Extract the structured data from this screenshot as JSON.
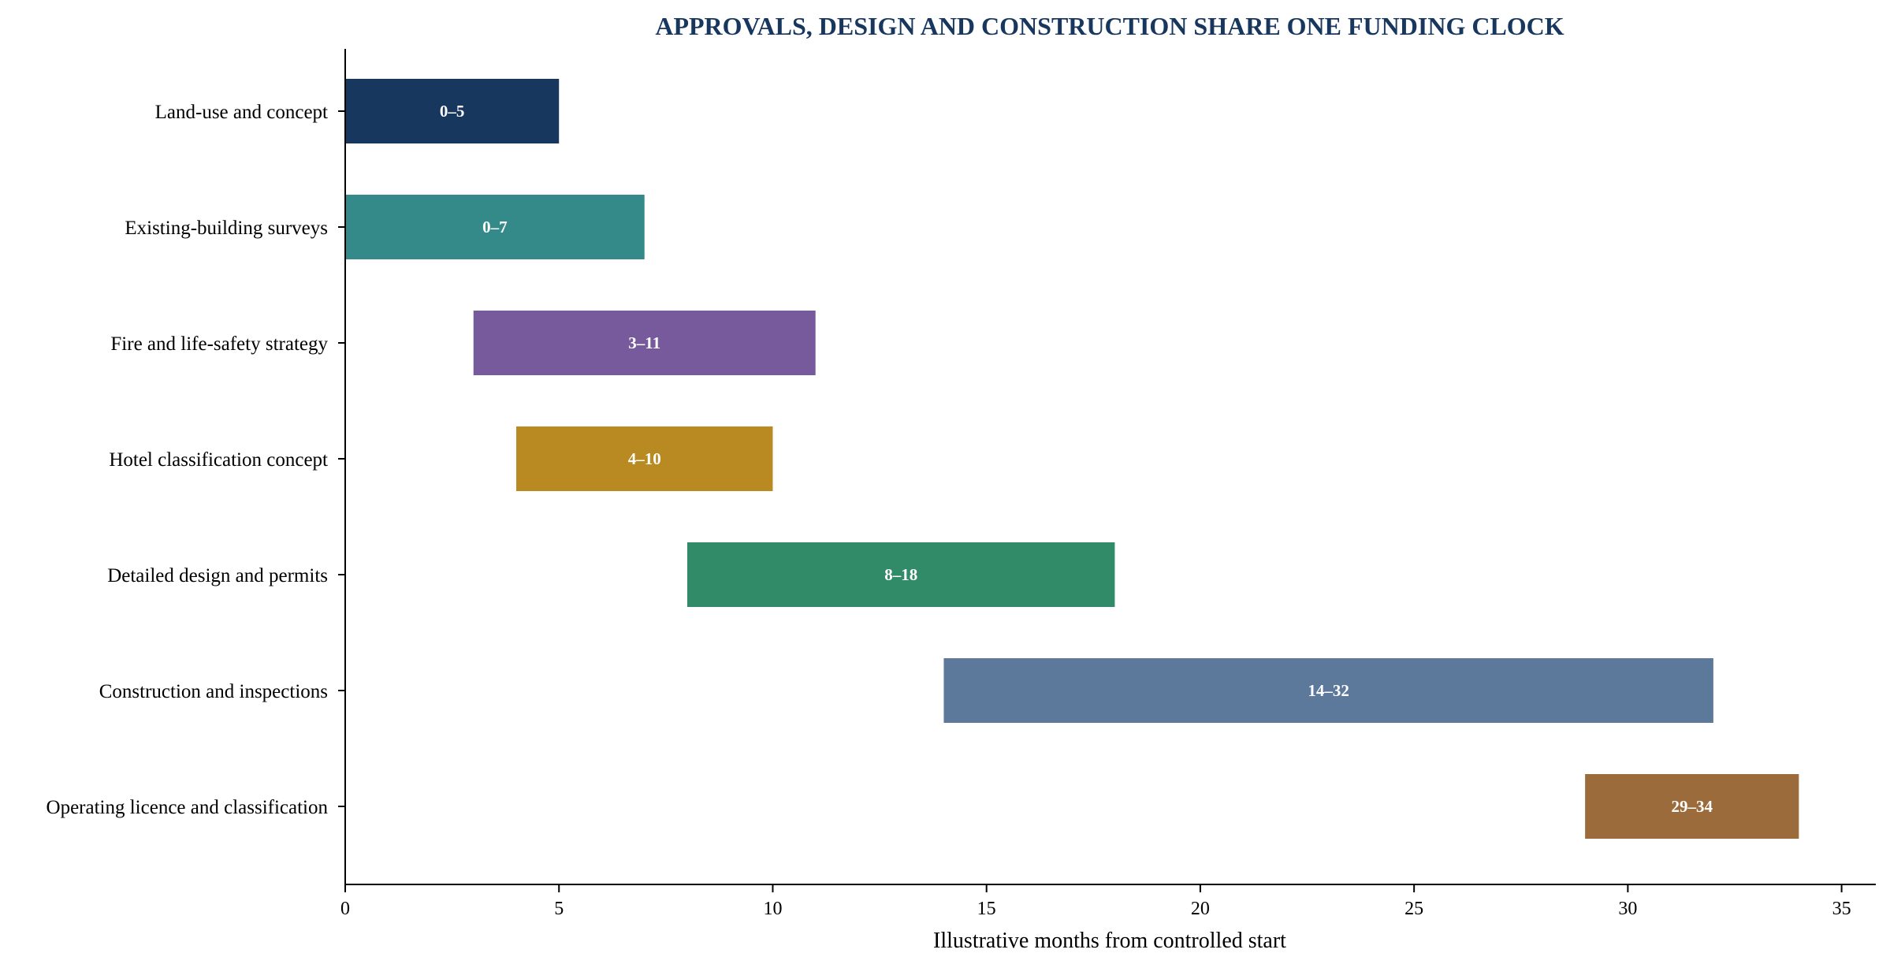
{
  "chart_data": {
    "type": "bar",
    "orientation": "horizontal",
    "title": "APPROVALS, DESIGN AND CONSTRUCTION SHARE ONE FUNDING CLOCK",
    "xlabel": "Illustrative months from controlled start",
    "ylabel": "",
    "xlim": [
      0,
      35.8
    ],
    "xticks": [
      0,
      5,
      10,
      15,
      20,
      25,
      30,
      35
    ],
    "grid": false,
    "categories": [
      "Land-use and concept",
      "Existing-building surveys",
      "Fire and life-safety strategy",
      "Hotel classification concept",
      "Detailed design and permits",
      "Construction and inspections",
      "Operating licence and classification"
    ],
    "bars": [
      {
        "start": 0,
        "end": 5,
        "label": "0–5",
        "color": "#17375e"
      },
      {
        "start": 0,
        "end": 7,
        "label": "0–7",
        "color": "#348a88"
      },
      {
        "start": 3,
        "end": 11,
        "label": "3–11",
        "color": "#775a9c"
      },
      {
        "start": 4,
        "end": 10,
        "label": "4–10",
        "color": "#b88a21"
      },
      {
        "start": 8,
        "end": 18,
        "label": "8–18",
        "color": "#318b68"
      },
      {
        "start": 14,
        "end": 32,
        "label": "14–32",
        "color": "#5c789b"
      },
      {
        "start": 29,
        "end": 34,
        "label": "29–34",
        "color": "#9c6b3c"
      }
    ]
  }
}
